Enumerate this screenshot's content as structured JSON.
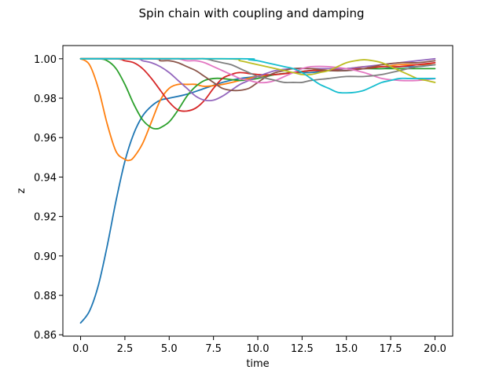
{
  "chart_data": {
    "type": "line",
    "title": "Spin chain with coupling and damping",
    "xlabel": "time",
    "ylabel": "z",
    "xlim": [
      -1.0,
      21.0
    ],
    "ylim": [
      0.8593,
      1.0067
    ],
    "xticks": [
      0.0,
      2.5,
      5.0,
      7.5,
      10.0,
      12.5,
      15.0,
      17.5,
      20.0
    ],
    "xtick_labels": [
      "0.0",
      "2.5",
      "5.0",
      "7.5",
      "10.0",
      "12.5",
      "15.0",
      "17.5",
      "20.0"
    ],
    "yticks": [
      0.86,
      0.88,
      0.9,
      0.92,
      0.94,
      0.96,
      0.98,
      1.0
    ],
    "ytick_labels": [
      "0.86",
      "0.88",
      "0.90",
      "0.92",
      "0.94",
      "0.96",
      "0.98",
      "1.00"
    ],
    "grid": false,
    "series": [
      {
        "color": "#1f77b4",
        "x": [
          0,
          0.5,
          1,
          1.5,
          2,
          2.5,
          3,
          3.5,
          4,
          4.5,
          5,
          6,
          7,
          8,
          9,
          10,
          11,
          12,
          13,
          14,
          15,
          16,
          17,
          18,
          19,
          20
        ],
        "y": [
          0.866,
          0.872,
          0.885,
          0.905,
          0.928,
          0.948,
          0.962,
          0.971,
          0.976,
          0.979,
          0.98,
          0.982,
          0.985,
          0.988,
          0.99,
          0.991,
          0.992,
          0.993,
          0.993,
          0.994,
          0.994,
          0.995,
          0.995,
          0.996,
          0.996,
          0.997
        ]
      },
      {
        "color": "#ff7f0e",
        "x": [
          0,
          0.5,
          1,
          1.5,
          2,
          2.5,
          2.75,
          3,
          3.5,
          4,
          4.5,
          5,
          5.5,
          6,
          6.5,
          7,
          8,
          9,
          10,
          11,
          12,
          13,
          14,
          15,
          16,
          17,
          18,
          19,
          20
        ],
        "y": [
          1.0,
          0.997,
          0.985,
          0.967,
          0.953,
          0.949,
          0.9485,
          0.95,
          0.957,
          0.968,
          0.979,
          0.985,
          0.987,
          0.987,
          0.987,
          0.986,
          0.987,
          0.989,
          0.991,
          0.992,
          0.993,
          0.994,
          0.995,
          0.995,
          0.996,
          0.996,
          0.997,
          0.997,
          0.997
        ]
      },
      {
        "color": "#2ca02c",
        "x": [
          0,
          1,
          1.5,
          2,
          2.5,
          3,
          3.5,
          4,
          4.3,
          4.5,
          5,
          5.5,
          6,
          6.5,
          7,
          7.5,
          8,
          9,
          10,
          11,
          12,
          13,
          14,
          15,
          16,
          17,
          18,
          19,
          20
        ],
        "y": [
          1.0,
          1.0,
          0.999,
          0.995,
          0.987,
          0.977,
          0.969,
          0.965,
          0.9645,
          0.965,
          0.968,
          0.974,
          0.981,
          0.986,
          0.989,
          0.99,
          0.99,
          0.989,
          0.99,
          0.992,
          0.993,
          0.994,
          0.994,
          0.995,
          0.995,
          0.995,
          0.995,
          0.995,
          0.995
        ]
      },
      {
        "color": "#d62728",
        "x": [
          0,
          2,
          2.5,
          3,
          3.5,
          4,
          4.5,
          5,
          5.5,
          6,
          6.5,
          7,
          7.5,
          8,
          8.5,
          9,
          10,
          11,
          12,
          13,
          14,
          15,
          16,
          17,
          18,
          19,
          20
        ],
        "y": [
          1.0,
          1.0,
          0.999,
          0.998,
          0.995,
          0.99,
          0.984,
          0.978,
          0.974,
          0.9735,
          0.975,
          0.979,
          0.985,
          0.99,
          0.992,
          0.993,
          0.992,
          0.992,
          0.993,
          0.994,
          0.994,
          0.995,
          0.995,
          0.996,
          0.996,
          0.997,
          0.998
        ]
      },
      {
        "color": "#9467bd",
        "x": [
          0,
          3,
          3.5,
          4,
          4.5,
          5,
          5.5,
          6,
          6.5,
          7,
          7.5,
          8,
          8.5,
          9,
          9.5,
          10,
          11,
          12,
          13,
          14,
          15,
          16,
          17,
          18,
          19,
          20
        ],
        "y": [
          1.0,
          1.0,
          0.999,
          0.998,
          0.996,
          0.993,
          0.989,
          0.985,
          0.981,
          0.979,
          0.979,
          0.981,
          0.984,
          0.987,
          0.989,
          0.991,
          0.994,
          0.995,
          0.995,
          0.995,
          0.995,
          0.996,
          0.997,
          0.998,
          0.999,
          1.0
        ]
      },
      {
        "color": "#8c564b",
        "x": [
          0,
          4,
          4.5,
          5,
          5.5,
          6,
          6.5,
          7,
          7.5,
          8,
          8.5,
          9,
          9.5,
          10,
          10.5,
          11,
          11.5,
          12,
          13,
          14,
          15,
          16,
          17,
          18,
          19,
          20
        ],
        "y": [
          1.0,
          1.0,
          0.999,
          0.999,
          0.998,
          0.996,
          0.994,
          0.991,
          0.988,
          0.985,
          0.984,
          0.984,
          0.985,
          0.988,
          0.991,
          0.993,
          0.994,
          0.995,
          0.995,
          0.994,
          0.994,
          0.995,
          0.997,
          0.998,
          0.998,
          0.999
        ]
      },
      {
        "color": "#e377c2",
        "x": [
          0,
          5,
          5.5,
          6,
          6.5,
          7,
          7.5,
          8,
          8.5,
          9,
          9.5,
          10,
          10.5,
          11,
          11.5,
          12,
          12.5,
          13,
          14,
          15,
          16,
          17,
          18,
          19,
          20
        ],
        "y": [
          1.0,
          1.0,
          1.0,
          0.999,
          0.999,
          0.998,
          0.996,
          0.994,
          0.992,
          0.99,
          0.989,
          0.988,
          0.988,
          0.989,
          0.991,
          0.993,
          0.995,
          0.996,
          0.996,
          0.995,
          0.993,
          0.99,
          0.989,
          0.989,
          0.99
        ]
      },
      {
        "color": "#7f7f7f",
        "x": [
          0,
          6,
          7,
          7.5,
          8,
          8.5,
          9,
          9.5,
          10,
          10.5,
          11,
          11.5,
          12,
          12.5,
          13,
          14,
          15,
          16,
          17,
          18,
          19,
          20
        ],
        "y": [
          1.0,
          1.0,
          1.0,
          0.999,
          0.998,
          0.997,
          0.995,
          0.993,
          0.991,
          0.99,
          0.989,
          0.988,
          0.988,
          0.988,
          0.989,
          0.99,
          0.991,
          0.991,
          0.992,
          0.994,
          0.996,
          0.997
        ]
      },
      {
        "color": "#bcbd22",
        "x": [
          0,
          8,
          9,
          9.5,
          10,
          10.5,
          11,
          11.5,
          12,
          12.5,
          13,
          13.5,
          14,
          14.5,
          15,
          15.5,
          16,
          16.5,
          17,
          17.5,
          18,
          18.5,
          19,
          19.5,
          20
        ],
        "y": [
          1.0,
          1.0,
          0.999,
          0.998,
          0.997,
          0.996,
          0.995,
          0.994,
          0.993,
          0.992,
          0.992,
          0.993,
          0.994,
          0.996,
          0.998,
          0.999,
          0.9995,
          0.999,
          0.998,
          0.996,
          0.994,
          0.992,
          0.99,
          0.989,
          0.988
        ]
      },
      {
        "color": "#17becf",
        "x": [
          0,
          9,
          9.5,
          10,
          10.5,
          11,
          11.5,
          12,
          12.5,
          13,
          13.5,
          14,
          14.5,
          15,
          15.5,
          16,
          16.5,
          17,
          17.5,
          18,
          18.5,
          19,
          19.5,
          20
        ],
        "y": [
          1.0,
          1.0,
          0.9995,
          0.999,
          0.998,
          0.997,
          0.996,
          0.995,
          0.993,
          0.99,
          0.987,
          0.985,
          0.983,
          0.9827,
          0.983,
          0.984,
          0.986,
          0.988,
          0.989,
          0.99,
          0.99,
          0.99,
          0.99,
          0.99
        ]
      }
    ]
  }
}
